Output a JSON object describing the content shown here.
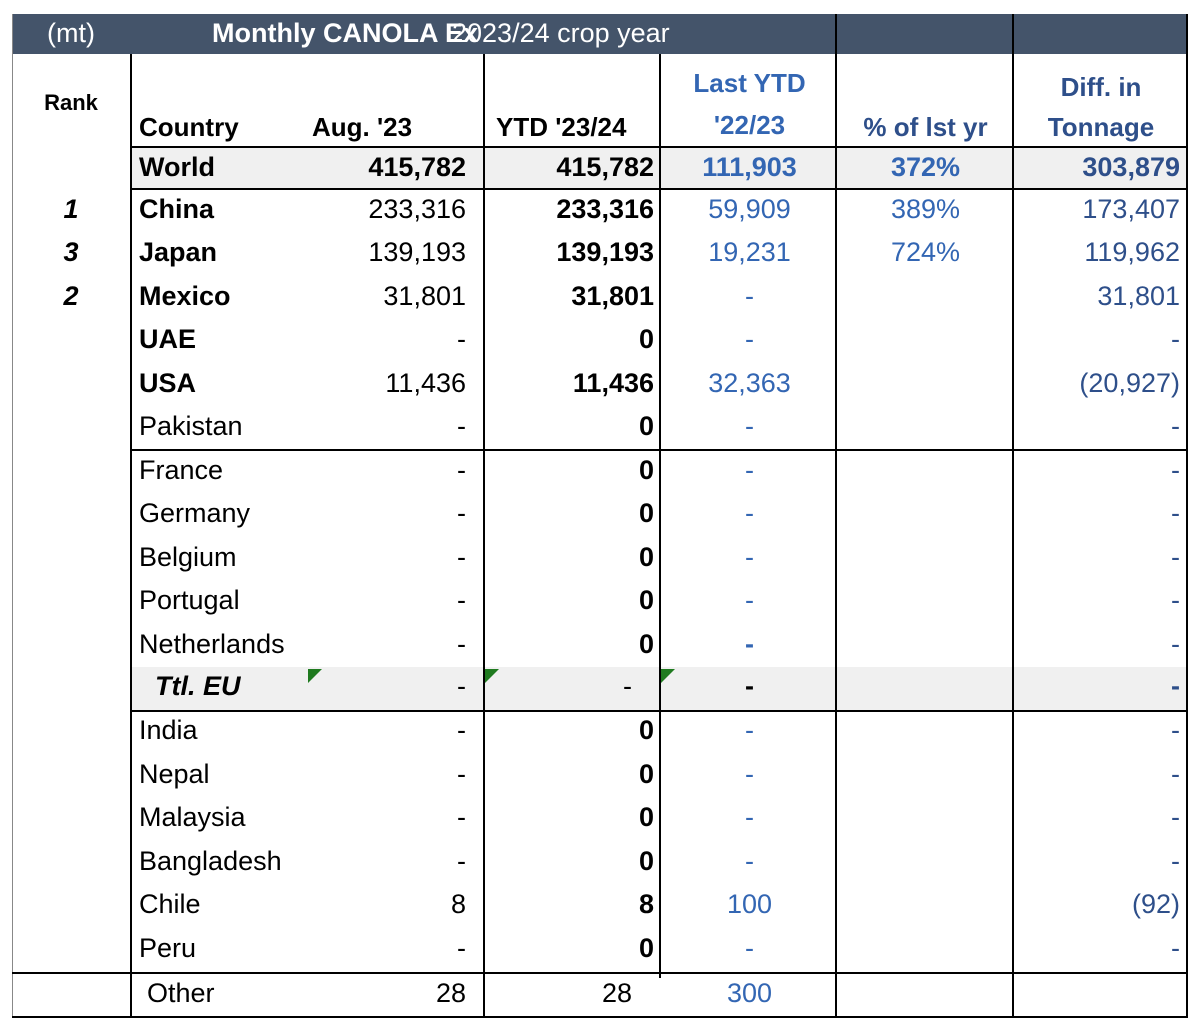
{
  "title_bar": {
    "unit": "(mt)",
    "title_bold": "Monthly CANOLA Ex",
    "crop_year": "2023/24 crop year"
  },
  "headers": {
    "rank": "Rank",
    "country": "Country",
    "aug": "Aug. '23",
    "ytd": "YTD '23/24",
    "last_ytd_line1": "Last YTD",
    "last_ytd_line2": "'22/23",
    "pct": "% of lst yr",
    "diff_line1": "Diff. in",
    "diff_line2": "Tonnage"
  },
  "rows": [
    {
      "rank": "",
      "country": "World",
      "aug": "415,782",
      "ytd": "415,782",
      "last": "111,903",
      "pct": "372%",
      "diff": "303,879"
    },
    {
      "rank": "1",
      "country": "China",
      "aug": "233,316",
      "ytd": "233,316",
      "last": "59,909",
      "pct": "389%",
      "diff": "173,407"
    },
    {
      "rank": "3",
      "country": "Japan",
      "aug": "139,193",
      "ytd": "139,193",
      "last": "19,231",
      "pct": "724%",
      "diff": "119,962"
    },
    {
      "rank": "2",
      "country": "Mexico",
      "aug": "31,801",
      "ytd": "31,801",
      "last": "-",
      "pct": "",
      "diff": "31,801"
    },
    {
      "rank": "",
      "country": "UAE",
      "aug": "-",
      "ytd": "0",
      "last": "-",
      "pct": "",
      "diff": "-"
    },
    {
      "rank": "",
      "country": "USA",
      "aug": "11,436",
      "ytd": "11,436",
      "last": "32,363",
      "pct": "",
      "diff": "(20,927)"
    },
    {
      "rank": "",
      "country": "Pakistan",
      "aug": "-",
      "ytd": "0",
      "last": "-",
      "pct": "",
      "diff": "-"
    },
    {
      "rank": "",
      "country": "France",
      "aug": "-",
      "ytd": "0",
      "last": "-",
      "pct": "",
      "diff": "-"
    },
    {
      "rank": "",
      "country": "Germany",
      "aug": "-",
      "ytd": "0",
      "last": "-",
      "pct": "",
      "diff": "-"
    },
    {
      "rank": "",
      "country": "Belgium",
      "aug": "-",
      "ytd": "0",
      "last": "-",
      "pct": "",
      "diff": "-"
    },
    {
      "rank": "",
      "country": "Portugal",
      "aug": "-",
      "ytd": "0",
      "last": "-",
      "pct": "",
      "diff": "-"
    },
    {
      "rank": "",
      "country": "Netherlands",
      "aug": "-",
      "ytd": "0",
      "last": "-",
      "pct": "",
      "diff": "-"
    },
    {
      "rank": "",
      "country": "Ttl. EU",
      "aug": "-",
      "ytd": "-",
      "last": "-",
      "pct": "",
      "diff": "-"
    },
    {
      "rank": "",
      "country": "India",
      "aug": "-",
      "ytd": "0",
      "last": "-",
      "pct": "",
      "diff": "-"
    },
    {
      "rank": "",
      "country": "Nepal",
      "aug": "-",
      "ytd": "0",
      "last": "-",
      "pct": "",
      "diff": "-"
    },
    {
      "rank": "",
      "country": "Malaysia",
      "aug": "-",
      "ytd": "0",
      "last": "-",
      "pct": "",
      "diff": "-"
    },
    {
      "rank": "",
      "country": "Bangladesh",
      "aug": "-",
      "ytd": "0",
      "last": "-",
      "pct": "",
      "diff": "-"
    },
    {
      "rank": "",
      "country": "Chile",
      "aug": "8",
      "ytd": "8",
      "last": "100",
      "pct": "",
      "diff": "(92)"
    },
    {
      "rank": "",
      "country": "Peru",
      "aug": "-",
      "ytd": "0",
      "last": "-",
      "pct": "",
      "diff": "-"
    },
    {
      "rank": "",
      "country": "Other",
      "aug": "28",
      "ytd": "28",
      "last": "300",
      "pct": "",
      "diff": ""
    }
  ],
  "colors": {
    "title_bg": "#44546a",
    "blue_text": "#3366b3",
    "navy_text": "#2e4f8a",
    "shade": "#f0f0f0",
    "flag": "#1f7a1f"
  }
}
